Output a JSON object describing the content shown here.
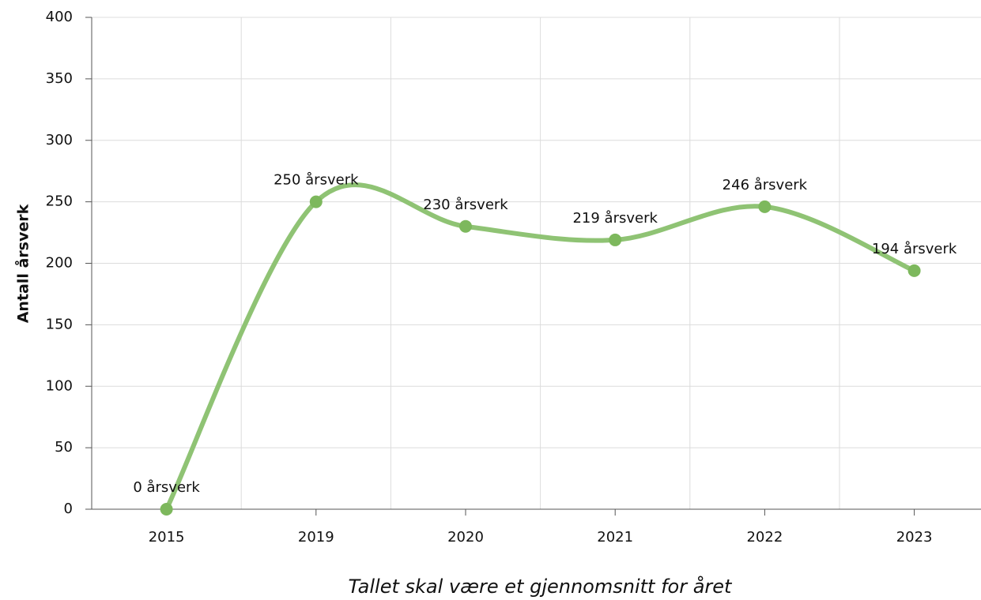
{
  "chart_data": {
    "type": "line",
    "categories": [
      "2015",
      "2019",
      "2020",
      "2021",
      "2022",
      "2023"
    ],
    "series": [
      {
        "color": "#8fc374",
        "marker_color": "#7db85d",
        "values": [
          0,
          250,
          230,
          219,
          246,
          194
        ],
        "value_labels": [
          "0 årsverk",
          "250 årsverk",
          "230 årsverk",
          "219 årsverk",
          "246 årsverk",
          "194 årsverk"
        ]
      }
    ],
    "ylim": [
      0,
      400
    ],
    "yticks": [
      0,
      50,
      100,
      150,
      200,
      250,
      300,
      350,
      400
    ],
    "y_label": "Antall årsverk",
    "x_label": "Tallet skal være et gjennomsnitt for året",
    "grid": true,
    "smooth": true
  }
}
